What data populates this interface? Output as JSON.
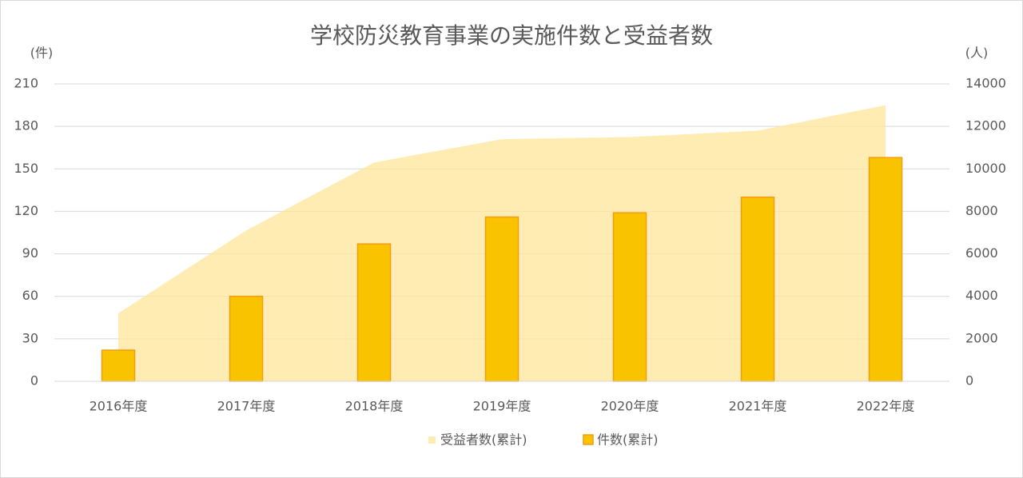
{
  "chart_data": {
    "type": "combo",
    "title": "学校防災教育事業の実施件数と受益者数",
    "y_label": "(件)",
    "y2_label": "(人)",
    "categories": [
      "2016年度",
      "2017年度",
      "2018年度",
      "2019年度",
      "2020年度",
      "2021年度",
      "2022年度"
    ],
    "series": [
      {
        "name": "受益者数(累計)",
        "type": "area",
        "axis": "y2",
        "color": "#ffe699",
        "values": [
          3200,
          7100,
          10300,
          11400,
          11500,
          11800,
          13000
        ]
      },
      {
        "name": "件数(累計)",
        "type": "bar",
        "color": "#f9c300",
        "edge": "#f39c12",
        "values": [
          22,
          60,
          97,
          116,
          119,
          130,
          158
        ]
      }
    ],
    "ylim": [
      0,
      210
    ],
    "yticks": [
      0,
      30,
      60,
      90,
      120,
      150,
      180,
      210
    ],
    "y2lim": [
      0,
      14000
    ],
    "y2ticks": [
      0,
      2000,
      4000,
      6000,
      8000,
      10000,
      12000,
      14000
    ],
    "grid": true,
    "legend": "bottom"
  }
}
